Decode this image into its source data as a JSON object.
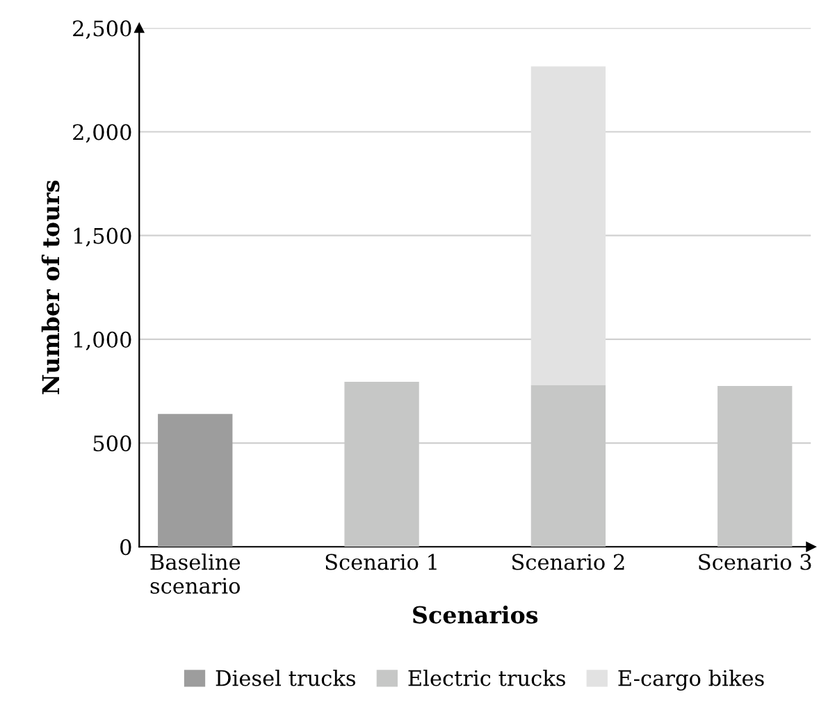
{
  "chart_data": {
    "type": "bar",
    "stacked": true,
    "xlabel": "Scenarios",
    "ylabel": "Number of tours",
    "categories": [
      "Baseline\nscenario",
      "Scenario 1",
      "Scenario 2",
      "Scenario 3"
    ],
    "series": [
      {
        "name": "Diesel trucks",
        "color": "#9d9d9d",
        "values": [
          640,
          null,
          null,
          null
        ]
      },
      {
        "name": "Electric trucks",
        "color": "#c6c7c6",
        "values": [
          null,
          795,
          780,
          775
        ]
      },
      {
        "name": "E-cargo bikes",
        "color": "#e2e2e2",
        "values": [
          null,
          null,
          1535,
          null
        ]
      }
    ],
    "ylim": [
      0,
      2500
    ],
    "yticks": [
      {
        "value": 0,
        "label": "0"
      },
      {
        "value": 500,
        "label": "500"
      },
      {
        "value": 1000,
        "label": "1,000"
      },
      {
        "value": 1500,
        "label": "1,500"
      },
      {
        "value": 2000,
        "label": "2,000"
      },
      {
        "value": 2500,
        "label": "2,500"
      }
    ],
    "grid": "y",
    "legend": "bottom"
  }
}
